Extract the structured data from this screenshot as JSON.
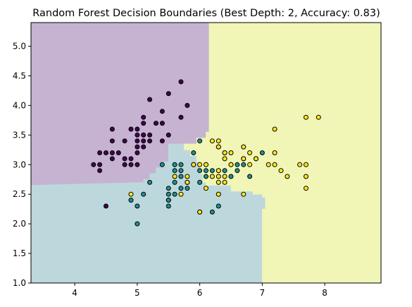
{
  "chart_data": {
    "type": "scatter",
    "title": "Random Forest Decision Boundaries (Best Depth: 2, Accuracy: 0.83)",
    "xlabel": "",
    "ylabel": "",
    "xlim": [
      3.3,
      8.9
    ],
    "ylim": [
      1.0,
      5.4
    ],
    "xticks": [
      4,
      5,
      6,
      7,
      8
    ],
    "yticks": [
      1.0,
      1.5,
      2.0,
      2.5,
      3.0,
      3.5,
      4.0,
      4.5,
      5.0
    ],
    "ytick_labels": [
      "1.0",
      "1.5",
      "2.0",
      "2.5",
      "3.0",
      "3.5",
      "4.0",
      "4.5",
      "5.0"
    ],
    "grid": false,
    "legend": "none",
    "regions": [
      {
        "class": 0,
        "color": "#c5b3d1",
        "polygon": [
          [
            3.3,
            5.4
          ],
          [
            6.15,
            5.4
          ],
          [
            6.15,
            3.55
          ],
          [
            6.1,
            3.55
          ],
          [
            6.1,
            3.45
          ],
          [
            5.95,
            3.45
          ],
          [
            5.95,
            3.35
          ],
          [
            5.75,
            3.35
          ],
          [
            5.5,
            3.35
          ],
          [
            5.5,
            3.05
          ],
          [
            5.4,
            3.05
          ],
          [
            5.4,
            2.95
          ],
          [
            5.3,
            2.95
          ],
          [
            5.3,
            2.85
          ],
          [
            5.2,
            2.85
          ],
          [
            5.2,
            2.75
          ],
          [
            5.1,
            2.75
          ],
          [
            5.1,
            2.7
          ],
          [
            3.3,
            2.65
          ]
        ]
      },
      {
        "class": 1,
        "color": "#bdd8dc",
        "polygon": [
          [
            3.3,
            2.65
          ],
          [
            5.1,
            2.7
          ],
          [
            5.1,
            2.75
          ],
          [
            5.2,
            2.75
          ],
          [
            5.2,
            2.85
          ],
          [
            5.3,
            2.85
          ],
          [
            5.3,
            2.95
          ],
          [
            5.4,
            2.95
          ],
          [
            5.4,
            3.05
          ],
          [
            5.5,
            3.05
          ],
          [
            5.5,
            3.35
          ],
          [
            5.75,
            3.35
          ],
          [
            5.75,
            3.25
          ],
          [
            5.85,
            3.25
          ],
          [
            5.85,
            3.15
          ],
          [
            5.95,
            3.15
          ],
          [
            5.95,
            3.05
          ],
          [
            6.0,
            3.05
          ],
          [
            6.0,
            2.85
          ],
          [
            6.05,
            2.85
          ],
          [
            6.05,
            2.7
          ],
          [
            6.1,
            2.7
          ],
          [
            6.1,
            2.65
          ],
          [
            6.5,
            2.65
          ],
          [
            6.5,
            2.55
          ],
          [
            6.85,
            2.55
          ],
          [
            6.85,
            2.5
          ],
          [
            7.0,
            2.5
          ],
          [
            7.0,
            2.45
          ],
          [
            7.05,
            2.45
          ],
          [
            7.05,
            2.25
          ],
          [
            7.0,
            2.25
          ],
          [
            7.0,
            1.0
          ],
          [
            3.3,
            1.0
          ]
        ]
      },
      {
        "class": 2,
        "color": "#f1f5b6",
        "polygon": [
          [
            6.15,
            5.4
          ],
          [
            8.9,
            5.4
          ],
          [
            8.9,
            1.0
          ],
          [
            7.0,
            1.0
          ],
          [
            7.0,
            2.25
          ],
          [
            7.05,
            2.25
          ],
          [
            7.05,
            2.45
          ],
          [
            7.0,
            2.45
          ],
          [
            7.0,
            2.5
          ],
          [
            6.85,
            2.5
          ],
          [
            6.85,
            2.55
          ],
          [
            6.5,
            2.55
          ],
          [
            6.5,
            2.65
          ],
          [
            6.1,
            2.65
          ],
          [
            6.1,
            2.7
          ],
          [
            6.05,
            2.7
          ],
          [
            6.05,
            2.85
          ],
          [
            6.0,
            2.85
          ],
          [
            6.0,
            3.05
          ],
          [
            5.95,
            3.05
          ],
          [
            5.95,
            3.15
          ],
          [
            5.85,
            3.15
          ],
          [
            5.85,
            3.25
          ],
          [
            5.75,
            3.25
          ],
          [
            5.75,
            3.35
          ],
          [
            5.95,
            3.35
          ],
          [
            5.95,
            3.45
          ],
          [
            6.1,
            3.45
          ],
          [
            6.1,
            3.55
          ],
          [
            6.15,
            3.55
          ]
        ]
      }
    ],
    "series": [
      {
        "class": 0,
        "color": "#440154",
        "points": [
          [
            4.3,
            3.0
          ],
          [
            4.4,
            2.9
          ],
          [
            4.4,
            3.0
          ],
          [
            4.4,
            3.2
          ],
          [
            4.5,
            2.3
          ],
          [
            4.6,
            3.1
          ],
          [
            4.6,
            3.2
          ],
          [
            4.6,
            3.4
          ],
          [
            4.6,
            3.6
          ],
          [
            4.7,
            3.2
          ],
          [
            4.8,
            3.0
          ],
          [
            4.8,
            3.1
          ],
          [
            4.8,
            3.4
          ],
          [
            4.9,
            3.0
          ],
          [
            4.9,
            3.1
          ],
          [
            4.9,
            3.6
          ],
          [
            5.0,
            3.0
          ],
          [
            5.0,
            3.2
          ],
          [
            5.0,
            3.3
          ],
          [
            5.0,
            3.4
          ],
          [
            5.0,
            3.5
          ],
          [
            5.0,
            3.6
          ],
          [
            5.1,
            3.3
          ],
          [
            5.1,
            3.4
          ],
          [
            5.1,
            3.5
          ],
          [
            5.1,
            3.7
          ],
          [
            5.1,
            3.8
          ],
          [
            5.2,
            3.4
          ],
          [
            5.2,
            3.5
          ],
          [
            5.2,
            4.1
          ],
          [
            5.3,
            3.7
          ],
          [
            5.4,
            3.4
          ],
          [
            5.4,
            3.7
          ],
          [
            5.4,
            3.9
          ],
          [
            5.5,
            3.5
          ],
          [
            5.5,
            4.2
          ],
          [
            5.7,
            3.8
          ],
          [
            5.7,
            4.4
          ],
          [
            5.8,
            4.0
          ],
          [
            5.1,
            3.5
          ],
          [
            4.5,
            3.2
          ]
        ]
      },
      {
        "class": 1,
        "color": "#21918c",
        "points": [
          [
            4.9,
            2.4
          ],
          [
            5.0,
            2.0
          ],
          [
            5.0,
            2.3
          ],
          [
            5.1,
            2.5
          ],
          [
            5.2,
            2.7
          ],
          [
            5.4,
            3.0
          ],
          [
            5.5,
            2.3
          ],
          [
            5.5,
            2.4
          ],
          [
            5.5,
            2.5
          ],
          [
            5.5,
            2.6
          ],
          [
            5.6,
            2.5
          ],
          [
            5.6,
            2.7
          ],
          [
            5.6,
            2.9
          ],
          [
            5.6,
            3.0
          ],
          [
            5.7,
            2.6
          ],
          [
            5.7,
            2.8
          ],
          [
            5.7,
            2.9
          ],
          [
            5.7,
            3.0
          ],
          [
            5.8,
            2.6
          ],
          [
            5.8,
            2.7
          ],
          [
            5.9,
            3.0
          ],
          [
            5.9,
            3.2
          ],
          [
            6.0,
            2.2
          ],
          [
            6.0,
            2.7
          ],
          [
            6.0,
            2.9
          ],
          [
            6.0,
            3.4
          ],
          [
            6.1,
            2.8
          ],
          [
            6.1,
            2.9
          ],
          [
            6.1,
            3.0
          ],
          [
            6.2,
            2.2
          ],
          [
            6.2,
            2.9
          ],
          [
            6.3,
            2.3
          ],
          [
            6.3,
            2.5
          ],
          [
            6.3,
            3.3
          ],
          [
            6.4,
            2.9
          ],
          [
            6.4,
            3.2
          ],
          [
            6.5,
            2.8
          ],
          [
            6.6,
            2.9
          ],
          [
            6.6,
            3.0
          ],
          [
            6.7,
            3.0
          ],
          [
            6.7,
            3.1
          ],
          [
            6.8,
            2.8
          ],
          [
            6.9,
            3.1
          ],
          [
            7.0,
            3.2
          ],
          [
            5.5,
            2.4
          ]
        ]
      },
      {
        "class": 2,
        "color": "#fde725",
        "points": [
          [
            4.9,
            2.5
          ],
          [
            5.6,
            2.8
          ],
          [
            5.7,
            2.5
          ],
          [
            5.8,
            2.7
          ],
          [
            5.8,
            2.8
          ],
          [
            5.9,
            3.0
          ],
          [
            6.0,
            2.2
          ],
          [
            6.0,
            3.0
          ],
          [
            6.1,
            2.6
          ],
          [
            6.1,
            3.0
          ],
          [
            6.2,
            2.8
          ],
          [
            6.2,
            3.4
          ],
          [
            6.3,
            2.5
          ],
          [
            6.3,
            2.7
          ],
          [
            6.3,
            2.8
          ],
          [
            6.3,
            2.9
          ],
          [
            6.3,
            3.3
          ],
          [
            6.3,
            3.4
          ],
          [
            6.4,
            2.7
          ],
          [
            6.4,
            2.8
          ],
          [
            6.4,
            3.1
          ],
          [
            6.4,
            3.2
          ],
          [
            6.5,
            3.0
          ],
          [
            6.5,
            3.2
          ],
          [
            6.7,
            2.5
          ],
          [
            6.7,
            3.1
          ],
          [
            6.7,
            3.3
          ],
          [
            6.8,
            3.0
          ],
          [
            6.8,
            3.2
          ],
          [
            6.9,
            3.1
          ],
          [
            7.1,
            3.0
          ],
          [
            7.2,
            3.0
          ],
          [
            7.2,
            3.2
          ],
          [
            7.2,
            3.6
          ],
          [
            7.3,
            2.9
          ],
          [
            7.4,
            2.8
          ],
          [
            7.6,
            3.0
          ],
          [
            7.7,
            2.6
          ],
          [
            7.7,
            2.8
          ],
          [
            7.7,
            3.0
          ],
          [
            7.7,
            3.8
          ],
          [
            7.9,
            3.8
          ],
          [
            6.5,
            3.0
          ],
          [
            6.3,
            2.9
          ]
        ]
      }
    ]
  }
}
